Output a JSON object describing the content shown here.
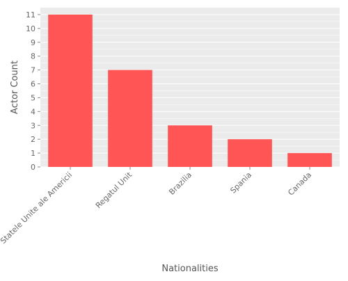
{
  "chart_data": {
    "type": "bar",
    "title": "",
    "xlabel": "Nationalities",
    "ylabel": "Actor Count",
    "categories": [
      "Statele Unite ale Americii",
      "Regatul Unit",
      "Brazilia",
      "Spania",
      "Canada"
    ],
    "values": [
      11,
      7,
      3,
      2,
      1
    ],
    "ylim": [
      0,
      11.5
    ],
    "yticks": [
      0,
      1,
      2,
      3,
      4,
      5,
      6,
      7,
      8,
      9,
      10,
      11
    ],
    "grid": true,
    "legend": "none",
    "colors": {
      "bar": "#ff5555",
      "panel": "#ebebeb",
      "grid": "#ffffff",
      "text": "#666666",
      "axis_title": "#555555"
    }
  }
}
